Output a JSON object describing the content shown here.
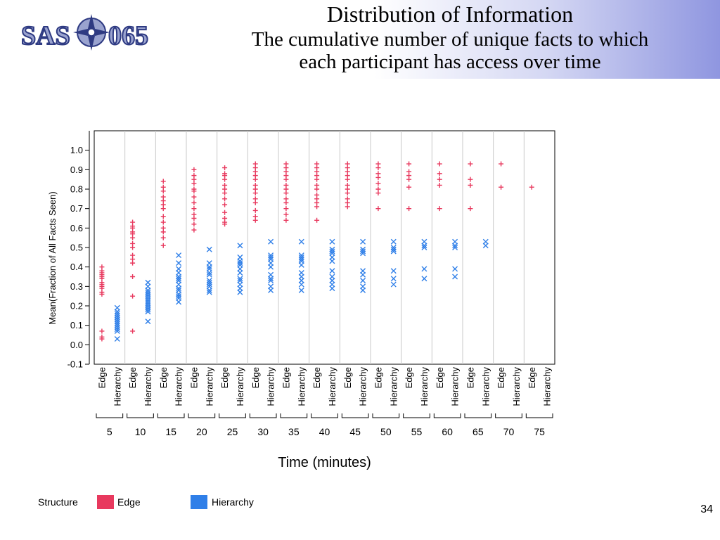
{
  "slide": {
    "title": "Distribution of Information",
    "subtitle_line1": "The cumulative number of unique facts to which",
    "subtitle_line2": "each participant has access over time",
    "page_number": "34",
    "logo_text": "SAS-065"
  },
  "colors": {
    "edge": "#e8395e",
    "hierarchy": "#2f7fe8",
    "gridline": "#c8c8c8",
    "header_accent": "#8f96e0"
  },
  "legend": {
    "title": "Structure",
    "items": [
      {
        "label": "Edge",
        "color": "#e8395e"
      },
      {
        "label": "Hierarchy",
        "color": "#2f7fe8"
      }
    ]
  },
  "chart_data": {
    "type": "scatter",
    "xlabel": "Time (minutes)",
    "ylabel": "Mean(Fraction of All Facts Seen)",
    "ylim": [
      -0.1,
      1.1
    ],
    "yticks": [
      "-0.1",
      "0.0",
      "0.1",
      "0.2",
      "0.3",
      "0.4",
      "0.5",
      "0.6",
      "0.7",
      "0.8",
      "0.9",
      "1.0"
    ],
    "groups": [
      "5",
      "10",
      "15",
      "20",
      "25",
      "30",
      "35",
      "40",
      "45",
      "50",
      "55",
      "60",
      "65",
      "70",
      "75"
    ],
    "subgroups": [
      "Edge",
      "Hierarchy"
    ],
    "series": [
      {
        "name": "Edge",
        "marker": "plus",
        "values": [
          [
            0.4,
            0.38,
            0.37,
            0.36,
            0.35,
            0.34,
            0.32,
            0.31,
            0.3,
            0.29,
            0.27,
            0.26,
            0.07,
            0.04,
            0.03
          ],
          [
            0.63,
            0.61,
            0.6,
            0.58,
            0.57,
            0.55,
            0.52,
            0.5,
            0.46,
            0.44,
            0.42,
            0.35,
            0.25,
            0.07
          ],
          [
            0.84,
            0.81,
            0.79,
            0.76,
            0.74,
            0.72,
            0.7,
            0.66,
            0.63,
            0.6,
            0.58,
            0.55,
            0.51
          ],
          [
            0.9,
            0.87,
            0.85,
            0.83,
            0.8,
            0.79,
            0.76,
            0.73,
            0.7,
            0.67,
            0.65,
            0.62,
            0.59
          ],
          [
            0.91,
            0.88,
            0.87,
            0.85,
            0.82,
            0.8,
            0.78,
            0.75,
            0.72,
            0.68,
            0.65,
            0.63,
            0.62
          ],
          [
            0.93,
            0.91,
            0.89,
            0.87,
            0.85,
            0.82,
            0.8,
            0.78,
            0.75,
            0.73,
            0.69,
            0.66,
            0.64
          ],
          [
            0.93,
            0.91,
            0.89,
            0.87,
            0.85,
            0.82,
            0.8,
            0.78,
            0.75,
            0.73,
            0.7,
            0.67,
            0.64
          ],
          [
            0.93,
            0.91,
            0.89,
            0.87,
            0.85,
            0.82,
            0.8,
            0.77,
            0.75,
            0.73,
            0.71,
            0.64
          ],
          [
            0.93,
            0.91,
            0.89,
            0.87,
            0.85,
            0.82,
            0.8,
            0.78,
            0.75,
            0.73,
            0.71
          ],
          [
            0.93,
            0.91,
            0.88,
            0.86,
            0.83,
            0.8,
            0.78,
            0.7
          ],
          [
            0.93,
            0.89,
            0.87,
            0.85,
            0.81,
            0.7
          ],
          [
            0.93,
            0.88,
            0.85,
            0.82,
            0.7
          ],
          [
            0.93,
            0.85,
            0.82,
            0.7
          ],
          [
            0.93,
            0.81
          ],
          [
            0.81
          ]
        ]
      },
      {
        "name": "Hierarchy",
        "marker": "x",
        "values": [
          [
            0.19,
            0.17,
            0.16,
            0.15,
            0.14,
            0.13,
            0.12,
            0.11,
            0.1,
            0.09,
            0.08,
            0.07,
            0.03
          ],
          [
            0.32,
            0.3,
            0.28,
            0.27,
            0.26,
            0.25,
            0.24,
            0.23,
            0.22,
            0.21,
            0.2,
            0.19,
            0.18,
            0.17,
            0.12
          ],
          [
            0.46,
            0.42,
            0.39,
            0.37,
            0.35,
            0.34,
            0.33,
            0.31,
            0.29,
            0.28,
            0.26,
            0.25,
            0.24,
            0.22
          ],
          [
            0.49,
            0.42,
            0.4,
            0.39,
            0.37,
            0.36,
            0.33,
            0.32,
            0.31,
            0.3,
            0.28,
            0.27
          ],
          [
            0.51,
            0.45,
            0.43,
            0.42,
            0.41,
            0.39,
            0.37,
            0.34,
            0.33,
            0.31,
            0.29,
            0.27
          ],
          [
            0.53,
            0.46,
            0.45,
            0.44,
            0.42,
            0.4,
            0.36,
            0.34,
            0.33,
            0.3,
            0.28
          ],
          [
            0.53,
            0.46,
            0.45,
            0.44,
            0.43,
            0.41,
            0.37,
            0.35,
            0.33,
            0.31,
            0.28
          ],
          [
            0.53,
            0.49,
            0.48,
            0.47,
            0.45,
            0.43,
            0.38,
            0.35,
            0.33,
            0.31,
            0.29
          ],
          [
            0.53,
            0.49,
            0.48,
            0.47,
            0.38,
            0.36,
            0.33,
            0.3,
            0.28
          ],
          [
            0.53,
            0.5,
            0.49,
            0.48,
            0.38,
            0.34,
            0.31
          ],
          [
            0.53,
            0.51,
            0.5,
            0.39,
            0.34
          ],
          [
            0.53,
            0.51,
            0.5,
            0.39,
            0.35
          ],
          [
            0.53,
            0.51
          ]
        ]
      }
    ]
  }
}
